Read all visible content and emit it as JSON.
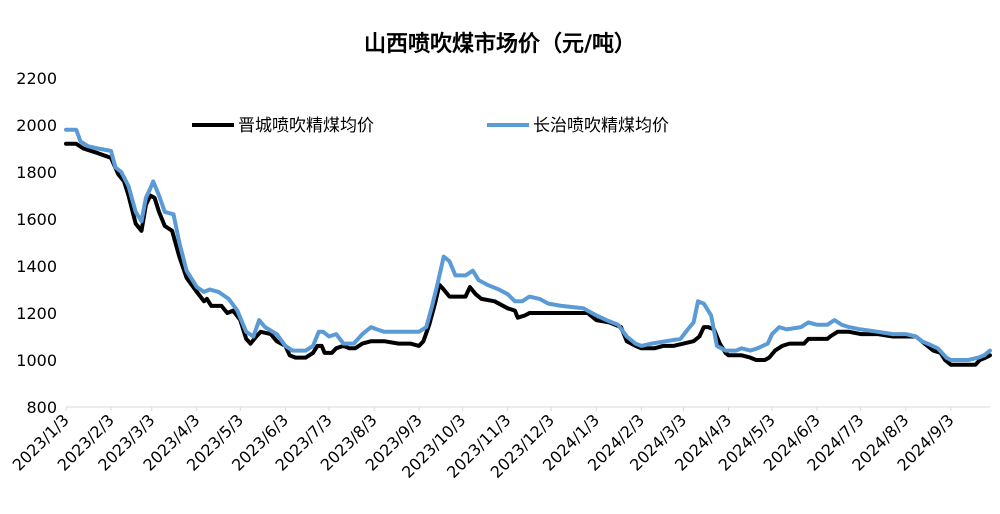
{
  "chart_data": {
    "type": "line",
    "title": "山西喷吹煤市场价（元/吨）",
    "xlabel": "",
    "ylabel": "",
    "ylim": [
      800,
      2200
    ],
    "yticks": [
      800,
      1000,
      1200,
      1400,
      1600,
      1800,
      2000,
      2200
    ],
    "grid": false,
    "legend_position": "top",
    "x_tick_labels": [
      "2023/1/3",
      "2023/2/3",
      "2023/3/3",
      "2023/4/3",
      "2023/5/3",
      "2023/6/3",
      "2023/7/3",
      "2023/8/3",
      "2023/9/3",
      "2023/10/3",
      "2023/11/3",
      "2023/12/3",
      "2024/1/3",
      "2024/2/3",
      "2024/3/3",
      "2024/4/3",
      "2024/5/3",
      "2024/6/3",
      "2024/7/3",
      "2024/8/3",
      "2024/9/3"
    ],
    "x_range": [
      "2023/1/3",
      "2024/9/30"
    ],
    "series": [
      {
        "name": "晋城喷吹精煤均价",
        "color": "#000000",
        "points": [
          [
            "2023/1/3",
            1920
          ],
          [
            "2023/1/10",
            1920
          ],
          [
            "2023/1/15",
            1900
          ],
          [
            "2023/1/25",
            1880
          ],
          [
            "2023/2/3",
            1860
          ],
          [
            "2023/2/8",
            1790
          ],
          [
            "2023/2/12",
            1760
          ],
          [
            "2023/2/15",
            1700
          ],
          [
            "2023/2/20",
            1580
          ],
          [
            "2023/2/24",
            1550
          ],
          [
            "2023/2/27",
            1660
          ],
          [
            "2023/3/2",
            1700
          ],
          [
            "2023/3/5",
            1690
          ],
          [
            "2023/3/8",
            1630
          ],
          [
            "2023/3/12",
            1570
          ],
          [
            "2023/3/17",
            1550
          ],
          [
            "2023/3/22",
            1440
          ],
          [
            "2023/3/27",
            1350
          ],
          [
            "2023/4/3",
            1290
          ],
          [
            "2023/4/8",
            1250
          ],
          [
            "2023/4/10",
            1260
          ],
          [
            "2023/4/13",
            1230
          ],
          [
            "2023/4/20",
            1230
          ],
          [
            "2023/4/24",
            1200
          ],
          [
            "2023/4/28",
            1210
          ],
          [
            "2023/5/3",
            1170
          ],
          [
            "2023/5/7",
            1090
          ],
          [
            "2023/5/10",
            1070
          ],
          [
            "2023/5/14",
            1100
          ],
          [
            "2023/5/17",
            1120
          ],
          [
            "2023/5/24",
            1110
          ],
          [
            "2023/5/28",
            1080
          ],
          [
            "2023/6/3",
            1060
          ],
          [
            "2023/6/6",
            1020
          ],
          [
            "2023/6/10",
            1010
          ],
          [
            "2023/6/17",
            1010
          ],
          [
            "2023/6/22",
            1030
          ],
          [
            "2023/6/25",
            1060
          ],
          [
            "2023/6/28",
            1060
          ],
          [
            "2023/6/30",
            1030
          ],
          [
            "2023/7/5",
            1030
          ],
          [
            "2023/7/8",
            1050
          ],
          [
            "2023/7/13",
            1060
          ],
          [
            "2023/7/17",
            1050
          ],
          [
            "2023/7/21",
            1050
          ],
          [
            "2023/7/26",
            1070
          ],
          [
            "2023/8/1",
            1080
          ],
          [
            "2023/8/10",
            1080
          ],
          [
            "2023/8/20",
            1070
          ],
          [
            "2023/8/28",
            1070
          ],
          [
            "2023/9/3",
            1060
          ],
          [
            "2023/9/6",
            1080
          ],
          [
            "2023/9/10",
            1150
          ],
          [
            "2023/9/14",
            1240
          ],
          [
            "2023/9/17",
            1320
          ],
          [
            "2023/9/20",
            1300
          ],
          [
            "2023/9/24",
            1270
          ],
          [
            "2023/10/1",
            1270
          ],
          [
            "2023/10/5",
            1270
          ],
          [
            "2023/10/8",
            1310
          ],
          [
            "2023/10/12",
            1280
          ],
          [
            "2023/10/16",
            1260
          ],
          [
            "2023/10/25",
            1250
          ],
          [
            "2023/11/3",
            1220
          ],
          [
            "2023/11/8",
            1210
          ],
          [
            "2023/11/10",
            1180
          ],
          [
            "2023/11/15",
            1190
          ],
          [
            "2023/11/18",
            1200
          ],
          [
            "2023/12/3",
            1200
          ],
          [
            "2023/12/20",
            1200
          ],
          [
            "2023/12/28",
            1200
          ],
          [
            "2024/1/3",
            1170
          ],
          [
            "2024/1/12",
            1160
          ],
          [
            "2024/1/20",
            1140
          ],
          [
            "2024/1/24",
            1080
          ],
          [
            "2024/1/30",
            1060
          ],
          [
            "2024/2/3",
            1050
          ],
          [
            "2024/2/12",
            1050
          ],
          [
            "2024/2/18",
            1060
          ],
          [
            "2024/2/25",
            1060
          ],
          [
            "2024/3/3",
            1070
          ],
          [
            "2024/3/10",
            1080
          ],
          [
            "2024/3/14",
            1100
          ],
          [
            "2024/3/17",
            1140
          ],
          [
            "2024/3/20",
            1140
          ],
          [
            "2024/3/24",
            1130
          ],
          [
            "2024/3/28",
            1070
          ],
          [
            "2024/4/1",
            1030
          ],
          [
            "2024/4/3",
            1020
          ],
          [
            "2024/4/12",
            1020
          ],
          [
            "2024/4/18",
            1010
          ],
          [
            "2024/4/22",
            1000
          ],
          [
            "2024/4/28",
            1000
          ],
          [
            "2024/5/1",
            1010
          ],
          [
            "2024/5/5",
            1040
          ],
          [
            "2024/5/10",
            1060
          ],
          [
            "2024/5/15",
            1070
          ],
          [
            "2024/5/25",
            1070
          ],
          [
            "2024/5/28",
            1090
          ],
          [
            "2024/6/3",
            1090
          ],
          [
            "2024/6/10",
            1090
          ],
          [
            "2024/6/12",
            1100
          ],
          [
            "2024/6/17",
            1120
          ],
          [
            "2024/6/25",
            1120
          ],
          [
            "2024/7/3",
            1110
          ],
          [
            "2024/7/15",
            1110
          ],
          [
            "2024/7/25",
            1100
          ],
          [
            "2024/8/3",
            1100
          ],
          [
            "2024/8/10",
            1100
          ],
          [
            "2024/8/14",
            1080
          ],
          [
            "2024/8/18",
            1060
          ],
          [
            "2024/8/22",
            1040
          ],
          [
            "2024/8/27",
            1030
          ],
          [
            "2024/8/30",
            1000
          ],
          [
            "2024/9/3",
            980
          ],
          [
            "2024/9/12",
            980
          ],
          [
            "2024/9/20",
            980
          ],
          [
            "2024/9/23",
            1000
          ],
          [
            "2024/9/27",
            1010
          ],
          [
            "2024/9/30",
            1020
          ]
        ]
      },
      {
        "name": "长治喷吹精煤均价",
        "color": "#5b9bd5",
        "points": [
          [
            "2023/1/3",
            1980
          ],
          [
            "2023/1/10",
            1980
          ],
          [
            "2023/1/13",
            1930
          ],
          [
            "2023/1/18",
            1910
          ],
          [
            "2023/1/25",
            1900
          ],
          [
            "2023/2/3",
            1890
          ],
          [
            "2023/2/6",
            1820
          ],
          [
            "2023/2/10",
            1800
          ],
          [
            "2023/2/15",
            1740
          ],
          [
            "2023/2/20",
            1630
          ],
          [
            "2023/2/24",
            1590
          ],
          [
            "2023/2/27",
            1690
          ],
          [
            "2023/3/2",
            1730
          ],
          [
            "2023/3/4",
            1760
          ],
          [
            "2023/3/8",
            1700
          ],
          [
            "2023/3/12",
            1630
          ],
          [
            "2023/3/18",
            1620
          ],
          [
            "2023/3/22",
            1500
          ],
          [
            "2023/3/27",
            1380
          ],
          [
            "2023/4/3",
            1310
          ],
          [
            "2023/4/8",
            1290
          ],
          [
            "2023/4/12",
            1300
          ],
          [
            "2023/4/18",
            1290
          ],
          [
            "2023/4/25",
            1260
          ],
          [
            "2023/5/1",
            1210
          ],
          [
            "2023/5/3",
            1180
          ],
          [
            "2023/5/7",
            1120
          ],
          [
            "2023/5/12",
            1100
          ],
          [
            "2023/5/16",
            1170
          ],
          [
            "2023/5/20",
            1140
          ],
          [
            "2023/5/28",
            1110
          ],
          [
            "2023/6/3",
            1060
          ],
          [
            "2023/6/8",
            1040
          ],
          [
            "2023/6/17",
            1040
          ],
          [
            "2023/6/22",
            1060
          ],
          [
            "2023/6/26",
            1120
          ],
          [
            "2023/6/29",
            1120
          ],
          [
            "2023/7/3",
            1100
          ],
          [
            "2023/7/8",
            1110
          ],
          [
            "2023/7/13",
            1070
          ],
          [
            "2023/7/20",
            1070
          ],
          [
            "2023/7/26",
            1110
          ],
          [
            "2023/8/1",
            1140
          ],
          [
            "2023/8/5",
            1130
          ],
          [
            "2023/8/10",
            1120
          ],
          [
            "2023/8/25",
            1120
          ],
          [
            "2023/9/3",
            1120
          ],
          [
            "2023/9/8",
            1140
          ],
          [
            "2023/9/12",
            1230
          ],
          [
            "2023/9/16",
            1330
          ],
          [
            "2023/9/20",
            1440
          ],
          [
            "2023/9/24",
            1420
          ],
          [
            "2023/9/28",
            1360
          ],
          [
            "2023/10/5",
            1360
          ],
          [
            "2023/10/10",
            1380
          ],
          [
            "2023/10/14",
            1340
          ],
          [
            "2023/10/20",
            1320
          ],
          [
            "2023/10/28",
            1300
          ],
          [
            "2023/11/3",
            1280
          ],
          [
            "2023/11/8",
            1250
          ],
          [
            "2023/11/13",
            1250
          ],
          [
            "2023/11/18",
            1270
          ],
          [
            "2023/11/25",
            1260
          ],
          [
            "2023/12/1",
            1240
          ],
          [
            "2023/12/10",
            1230
          ],
          [
            "2023/12/25",
            1220
          ],
          [
            "2024/1/3",
            1190
          ],
          [
            "2024/1/10",
            1170
          ],
          [
            "2024/1/18",
            1150
          ],
          [
            "2024/1/24",
            1100
          ],
          [
            "2024/1/30",
            1070
          ],
          [
            "2024/2/3",
            1060
          ],
          [
            "2024/2/10",
            1070
          ],
          [
            "2024/2/20",
            1080
          ],
          [
            "2024/3/1",
            1090
          ],
          [
            "2024/3/6",
            1130
          ],
          [
            "2024/3/10",
            1160
          ],
          [
            "2024/3/13",
            1250
          ],
          [
            "2024/3/17",
            1240
          ],
          [
            "2024/3/22",
            1190
          ],
          [
            "2024/3/26",
            1060
          ],
          [
            "2024/4/1",
            1040
          ],
          [
            "2024/4/8",
            1040
          ],
          [
            "2024/4/12",
            1050
          ],
          [
            "2024/4/18",
            1040
          ],
          [
            "2024/4/23",
            1050
          ],
          [
            "2024/4/30",
            1070
          ],
          [
            "2024/5/3",
            1110
          ],
          [
            "2024/5/8",
            1140
          ],
          [
            "2024/5/13",
            1130
          ],
          [
            "2024/5/23",
            1140
          ],
          [
            "2024/5/28",
            1160
          ],
          [
            "2024/6/3",
            1150
          ],
          [
            "2024/6/10",
            1150
          ],
          [
            "2024/6/15",
            1170
          ],
          [
            "2024/6/20",
            1150
          ],
          [
            "2024/6/25",
            1140
          ],
          [
            "2024/7/3",
            1130
          ],
          [
            "2024/7/15",
            1120
          ],
          [
            "2024/7/25",
            1110
          ],
          [
            "2024/8/3",
            1110
          ],
          [
            "2024/8/10",
            1100
          ],
          [
            "2024/8/14",
            1080
          ],
          [
            "2024/8/18",
            1070
          ],
          [
            "2024/8/25",
            1050
          ],
          [
            "2024/8/31",
            1010
          ],
          [
            "2024/9/3",
            1000
          ],
          [
            "2024/9/15",
            1000
          ],
          [
            "2024/9/22",
            1010
          ],
          [
            "2024/9/26",
            1020
          ],
          [
            "2024/9/30",
            1040
          ]
        ]
      }
    ]
  }
}
